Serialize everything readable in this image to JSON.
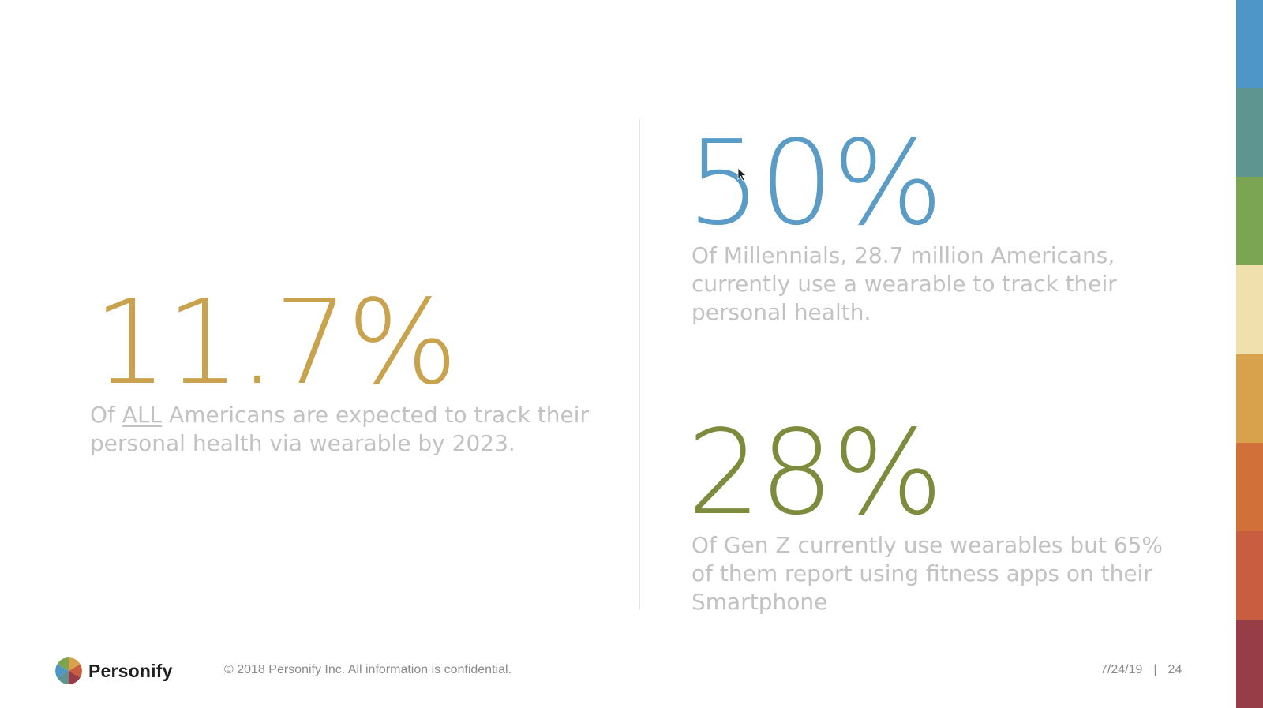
{
  "colors": {
    "stat_gold": "#c9a24d",
    "stat_blue": "#5a9cc5",
    "stat_olive": "#7c8b3c",
    "description_gray": "#c2c2c2",
    "footer_gray": "#8b8b8b",
    "stripes": [
      "#4f96c8",
      "#5f9590",
      "#7ba453",
      "#efe0ad",
      "#d8a14b",
      "#d2703a",
      "#c85d3f",
      "#973d48"
    ]
  },
  "left_stat": {
    "value": "11.7%",
    "desc_prefix": "Of ",
    "desc_emphasis": "ALL",
    "desc_rest": " Americans are expected to track their personal health via wearable by 2023."
  },
  "top_right_stat": {
    "value": "50%",
    "description": "Of Millennials, 28.7 million Americans, currently use a wearable to track their personal health."
  },
  "bottom_right_stat": {
    "value": "28%",
    "description": "Of Gen Z currently use wearables but 65% of them report using fitness apps on their Smartphone"
  },
  "footer": {
    "logo_icon": "personify-logo-icon",
    "brand": "Personify",
    "copyright": "© 2018 Personify Inc. All information is confidential.",
    "date": "7/24/19",
    "separator": "|",
    "page_number": "24"
  },
  "cursor_icon": "mouse-pointer-icon"
}
